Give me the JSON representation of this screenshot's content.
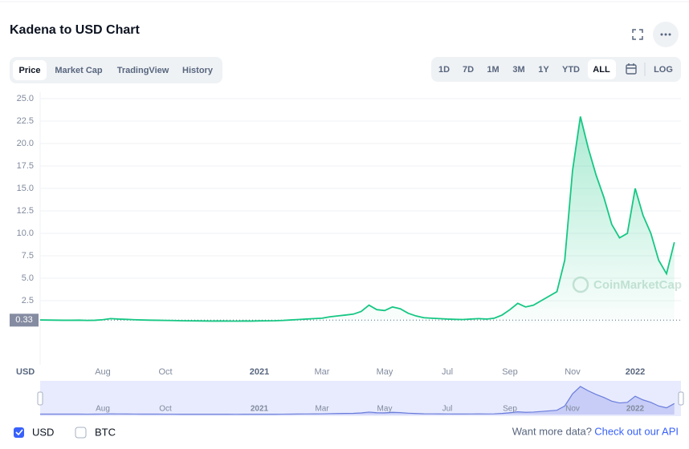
{
  "header": {
    "title": "Kadena to USD Chart"
  },
  "tabs": [
    "Price",
    "Market Cap",
    "TradingView",
    "History"
  ],
  "ranges": [
    "1D",
    "7D",
    "1M",
    "3M",
    "1Y",
    "YTD",
    "ALL",
    "LOG"
  ],
  "currencies": [
    "BTC"
  ],
  "footer": {
    "prompt": "Want more data?",
    "link": "Check out our API"
  },
  "chart_data": {
    "type": "line",
    "categories": [
      null,
      null,
      null,
      null,
      null,
      null,
      null,
      null,
      "Aug",
      null,
      null,
      null,
      null,
      null,
      null,
      null,
      "Oct",
      null,
      null,
      null,
      null,
      null,
      null,
      null,
      null,
      null,
      null,
      null,
      "2021",
      null,
      null,
      null,
      null,
      null,
      null,
      null,
      "Mar",
      null,
      null,
      null,
      null,
      null,
      null,
      null,
      "May",
      null,
      null,
      null,
      null,
      null,
      null,
      null,
      "Jul",
      null,
      null,
      null,
      null,
      null,
      null,
      null,
      "Sep",
      null,
      null,
      null,
      null,
      null,
      null,
      null,
      "Nov",
      null,
      null,
      null,
      null,
      null,
      null,
      null,
      "2022",
      null,
      null,
      null,
      null,
      null
    ],
    "series": [
      {
        "name": "USD",
        "color": "#16c784",
        "values": [
          0.35,
          0.34,
          0.33,
          0.32,
          0.32,
          0.33,
          0.3,
          0.32,
          0.38,
          0.5,
          0.45,
          0.42,
          0.38,
          0.35,
          0.33,
          0.32,
          0.3,
          0.29,
          0.27,
          0.26,
          0.25,
          0.24,
          0.23,
          0.24,
          0.23,
          0.22,
          0.24,
          0.23,
          0.25,
          0.26,
          0.27,
          0.3,
          0.35,
          0.4,
          0.45,
          0.5,
          0.55,
          0.7,
          0.8,
          0.9,
          1.0,
          1.3,
          2.0,
          1.5,
          1.4,
          1.8,
          1.6,
          1.1,
          0.8,
          0.6,
          0.55,
          0.5,
          0.45,
          0.42,
          0.4,
          0.45,
          0.5,
          0.45,
          0.55,
          0.9,
          1.5,
          2.2,
          1.8,
          2.0,
          2.5,
          3.0,
          3.5,
          7.0,
          17.0,
          23.0,
          19.5,
          16.5,
          14.0,
          11.0,
          9.5,
          10.0,
          15.0,
          12.0,
          10.0,
          7.0,
          5.5,
          9.0
        ]
      }
    ],
    "ylim": [
      0,
      25
    ],
    "yticks": [
      {
        "value": 25,
        "label": "25.0"
      },
      22.5,
      {
        "value": 20,
        "label": "20.0"
      },
      17.5,
      {
        "value": 15,
        "label": "15.0"
      },
      12.5,
      {
        "value": 10,
        "label": "10.0"
      },
      7.5,
      {
        "value": 5,
        "label": "5.0"
      },
      2.5
    ],
    "reference_line": 0.33,
    "currency_label": "USD",
    "watermark": "CoinMarketCap",
    "grid": true
  }
}
